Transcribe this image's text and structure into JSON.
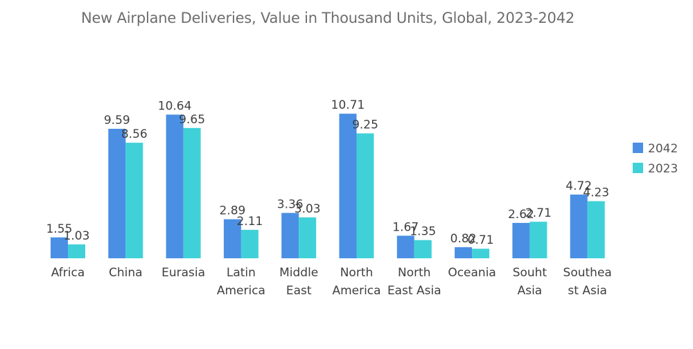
{
  "chart_data": {
    "type": "bar",
    "title": "New Airplane Deliveries, Value in Thousand Units, Global, 2023-2042",
    "xlabel": "",
    "ylabel": "",
    "ylim": [
      0,
      12
    ],
    "grid": false,
    "legend_position": "right",
    "categories": [
      [
        "Africa"
      ],
      [
        "China"
      ],
      [
        "Eurasia"
      ],
      [
        "Latin",
        "America"
      ],
      [
        "Middle",
        "East"
      ],
      [
        "North",
        "America"
      ],
      [
        "North",
        "East Asia"
      ],
      [
        "Oceania"
      ],
      [
        "Souht",
        "Asia"
      ],
      [
        "Southea",
        "st Asia"
      ]
    ],
    "series": [
      {
        "name": "2042",
        "color": "#4a8fe3",
        "values": [
          1.55,
          9.59,
          10.64,
          2.89,
          3.36,
          10.71,
          1.67,
          0.82,
          2.62,
          4.72
        ],
        "value_labels": [
          "1.55",
          "9.59",
          "10.64",
          "2.89",
          "3.36",
          "10.71",
          "1.67",
          "0.82",
          "2.62",
          "4.72"
        ]
      },
      {
        "name": "2023",
        "color": "#40d1d8",
        "values": [
          1.03,
          8.56,
          9.65,
          2.11,
          3.03,
          9.25,
          1.35,
          0.71,
          2.71,
          4.23
        ],
        "value_labels": [
          "1.03",
          "8.56",
          "9.65",
          "2.11",
          "3.03",
          "9.25",
          "1.35",
          "0.71",
          "2.71",
          "4.23"
        ]
      }
    ]
  }
}
